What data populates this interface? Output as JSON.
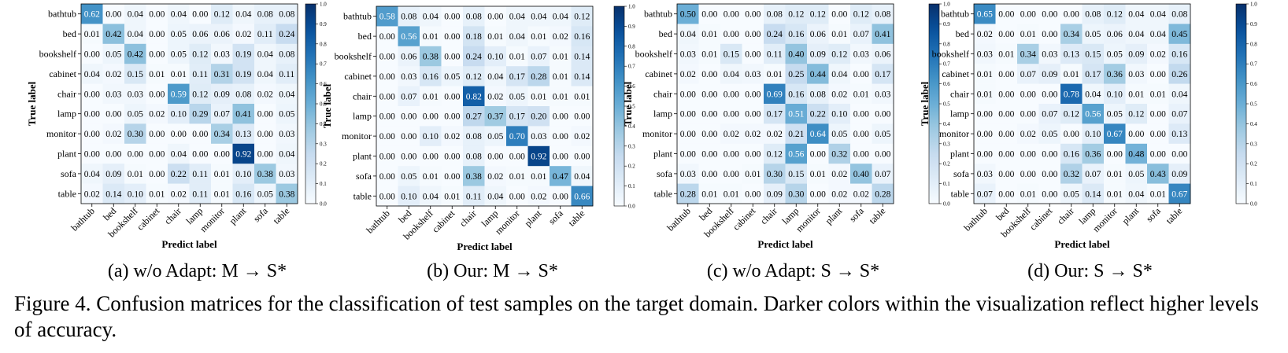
{
  "figure": {
    "caption_label": "Figure 4.",
    "caption_text": "Confusion matrices for the classification of test samples on the target domain. Darker colors within the visualization reflect higher levels of accuracy."
  },
  "colorbar_ticks": [
    "0.0",
    "0.1",
    "0.2",
    "0.3",
    "0.4",
    "0.5",
    "0.6",
    "0.7",
    "0.8",
    "0.9",
    "1.0"
  ],
  "chart_data": [
    {
      "type": "heatmap",
      "panel_caption": "(a) w/o Adapt: M → S*",
      "xlabel": "Predict label",
      "ylabel": "True label",
      "categories": [
        "bathtub",
        "bed",
        "bookshelf",
        "cabinet",
        "chair",
        "lamp",
        "monitor",
        "plant",
        "sofa",
        "table"
      ],
      "colorbar_range": [
        0,
        1
      ],
      "matrix": [
        [
          0.62,
          0.0,
          0.04,
          0.0,
          0.04,
          0.0,
          0.12,
          0.04,
          0.08,
          0.08
        ],
        [
          0.01,
          0.42,
          0.04,
          0.0,
          0.05,
          0.06,
          0.06,
          0.02,
          0.11,
          0.24
        ],
        [
          0.0,
          0.05,
          0.42,
          0.0,
          0.05,
          0.12,
          0.03,
          0.19,
          0.04,
          0.08
        ],
        [
          0.04,
          0.02,
          0.15,
          0.01,
          0.01,
          0.11,
          0.31,
          0.19,
          0.04,
          0.11
        ],
        [
          0.0,
          0.03,
          0.03,
          0.0,
          0.59,
          0.12,
          0.09,
          0.08,
          0.02,
          0.04
        ],
        [
          0.0,
          0.0,
          0.05,
          0.02,
          0.1,
          0.29,
          0.07,
          0.41,
          0.0,
          0.05
        ],
        [
          0.0,
          0.02,
          0.3,
          0.0,
          0.0,
          0.0,
          0.34,
          0.13,
          0.0,
          0.03
        ],
        [
          0.0,
          0.0,
          0.0,
          0.0,
          0.04,
          0.0,
          0.0,
          0.92,
          0.0,
          0.04
        ],
        [
          0.04,
          0.09,
          0.01,
          0.0,
          0.22,
          0.11,
          0.01,
          0.1,
          0.38,
          0.03
        ],
        [
          0.02,
          0.14,
          0.1,
          0.01,
          0.02,
          0.11,
          0.01,
          0.16,
          0.05,
          0.38
        ]
      ]
    },
    {
      "type": "heatmap",
      "panel_caption": "(b) Our: M → S*",
      "xlabel": "Predict label",
      "ylabel": "True label",
      "categories": [
        "bathtub",
        "bed",
        "bookshelf",
        "cabinet",
        "chair",
        "lamp",
        "monitor",
        "plant",
        "sofa",
        "table"
      ],
      "colorbar_range": [
        0,
        1
      ],
      "matrix": [
        [
          0.58,
          0.08,
          0.04,
          0.0,
          0.08,
          0.0,
          0.04,
          0.04,
          0.04,
          0.12
        ],
        [
          0.0,
          0.56,
          0.01,
          0.0,
          0.18,
          0.01,
          0.04,
          0.01,
          0.02,
          0.16
        ],
        [
          0.0,
          0.06,
          0.38,
          0.0,
          0.24,
          0.1,
          0.01,
          0.07,
          0.01,
          0.14
        ],
        [
          0.0,
          0.03,
          0.16,
          0.05,
          0.12,
          0.04,
          0.17,
          0.28,
          0.01,
          0.14
        ],
        [
          0.0,
          0.07,
          0.01,
          0.0,
          0.82,
          0.02,
          0.05,
          0.01,
          0.01,
          0.01
        ],
        [
          0.0,
          0.0,
          0.0,
          0.0,
          0.27,
          0.37,
          0.17,
          0.2,
          0.0,
          0.0
        ],
        [
          0.0,
          0.0,
          0.1,
          0.02,
          0.08,
          0.05,
          0.7,
          0.03,
          0.0,
          0.02
        ],
        [
          0.0,
          0.0,
          0.0,
          0.0,
          0.08,
          0.0,
          0.0,
          0.92,
          0.0,
          0.0
        ],
        [
          0.0,
          0.05,
          0.01,
          0.0,
          0.38,
          0.02,
          0.01,
          0.01,
          0.47,
          0.04
        ],
        [
          0.0,
          0.1,
          0.04,
          0.01,
          0.11,
          0.04,
          0.0,
          0.02,
          0.0,
          0.66
        ]
      ]
    },
    {
      "type": "heatmap",
      "panel_caption": "(c) w/o Adapt: S → S*",
      "xlabel": "Predict label",
      "ylabel": "True label",
      "categories": [
        "bathtub",
        "bed",
        "bookshelf",
        "cabinet",
        "chair",
        "lamp",
        "monitor",
        "plant",
        "sofa",
        "table"
      ],
      "colorbar_range": [
        0,
        1
      ],
      "matrix": [
        [
          0.5,
          0.0,
          0.0,
          0.0,
          0.08,
          0.12,
          0.12,
          0.0,
          0.12,
          0.08
        ],
        [
          0.04,
          0.01,
          0.0,
          0.0,
          0.24,
          0.16,
          0.06,
          0.01,
          0.07,
          0.41
        ],
        [
          0.03,
          0.01,
          0.15,
          0.0,
          0.11,
          0.4,
          0.09,
          0.12,
          0.03,
          0.06
        ],
        [
          0.02,
          0.0,
          0.04,
          0.03,
          0.01,
          0.25,
          0.44,
          0.04,
          0.0,
          0.17
        ],
        [
          0.0,
          0.0,
          0.0,
          0.0,
          0.69,
          0.16,
          0.08,
          0.02,
          0.01,
          0.03
        ],
        [
          0.0,
          0.0,
          0.0,
          0.0,
          0.17,
          0.51,
          0.22,
          0.1,
          0.0,
          0.0
        ],
        [
          0.0,
          0.0,
          0.02,
          0.02,
          0.02,
          0.21,
          0.64,
          0.05,
          0.0,
          0.05
        ],
        [
          0.0,
          0.0,
          0.0,
          0.0,
          0.12,
          0.56,
          0.0,
          0.32,
          0.0,
          0.0
        ],
        [
          0.03,
          0.0,
          0.0,
          0.01,
          0.3,
          0.15,
          0.01,
          0.02,
          0.4,
          0.07
        ],
        [
          0.28,
          0.01,
          0.01,
          0.0,
          0.09,
          0.3,
          0.0,
          0.02,
          0.02,
          0.28
        ]
      ]
    },
    {
      "type": "heatmap",
      "panel_caption": "(d) Our: S → S*",
      "xlabel": "Predict label",
      "ylabel": "True label",
      "categories": [
        "bathtub",
        "bed",
        "bookshelf",
        "cabinet",
        "chair",
        "lamp",
        "monitor",
        "plant",
        "sofa",
        "table"
      ],
      "colorbar_range": [
        0,
        1
      ],
      "matrix": [
        [
          0.65,
          0.0,
          0.0,
          0.0,
          0.0,
          0.08,
          0.12,
          0.04,
          0.04,
          0.08
        ],
        [
          0.02,
          0.0,
          0.01,
          0.0,
          0.34,
          0.05,
          0.06,
          0.04,
          0.04,
          0.45
        ],
        [
          0.03,
          0.01,
          0.34,
          0.03,
          0.13,
          0.15,
          0.05,
          0.09,
          0.02,
          0.16
        ],
        [
          0.01,
          0.0,
          0.07,
          0.09,
          0.01,
          0.17,
          0.36,
          0.03,
          0.0,
          0.26
        ],
        [
          0.01,
          0.0,
          0.0,
          0.0,
          0.78,
          0.04,
          0.1,
          0.01,
          0.01,
          0.04
        ],
        [
          0.0,
          0.0,
          0.0,
          0.07,
          0.12,
          0.56,
          0.05,
          0.12,
          0.0,
          0.07
        ],
        [
          0.0,
          0.0,
          0.02,
          0.05,
          0.0,
          0.1,
          0.67,
          0.0,
          0.0,
          0.13
        ],
        [
          0.0,
          0.0,
          0.0,
          0.0,
          0.16,
          0.36,
          0.0,
          0.48,
          0.0,
          0.0
        ],
        [
          0.03,
          0.0,
          0.0,
          0.0,
          0.32,
          0.07,
          0.01,
          0.05,
          0.43,
          0.09
        ],
        [
          0.07,
          0.0,
          0.01,
          0.0,
          0.05,
          0.14,
          0.01,
          0.04,
          0.01,
          0.67
        ]
      ]
    }
  ]
}
